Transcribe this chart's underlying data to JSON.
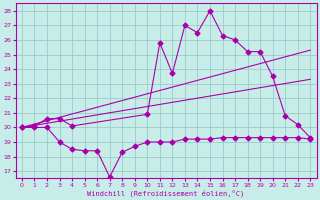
{
  "xlabel": "Windchill (Refroidissement éolien,°C)",
  "bg_color": "#c8ece8",
  "line_color": "#aa00aa",
  "grid_color": "#99cccc",
  "spine_color": "#aa00aa",
  "xlim": [
    -0.5,
    23.5
  ],
  "ylim": [
    16.5,
    28.5
  ],
  "yticks": [
    17,
    18,
    19,
    20,
    21,
    22,
    23,
    24,
    25,
    26,
    27,
    28
  ],
  "xticks": [
    0,
    1,
    2,
    3,
    4,
    5,
    6,
    7,
    8,
    9,
    10,
    11,
    12,
    13,
    14,
    15,
    16,
    17,
    18,
    19,
    20,
    21,
    22,
    23
  ],
  "series": [
    {
      "x": [
        0,
        1,
        2,
        3,
        4,
        5,
        6,
        7,
        8,
        9,
        10,
        11,
        12,
        13,
        14,
        15,
        16,
        17,
        18,
        19,
        20,
        21,
        22,
        23
      ],
      "y": [
        20.0,
        20.0,
        20.0,
        19.0,
        18.5,
        18.4,
        18.4,
        16.6,
        18.3,
        18.7,
        19.0,
        19.0,
        19.0,
        19.2,
        19.2,
        19.2,
        19.3,
        19.3,
        19.3,
        19.3,
        19.3,
        19.3,
        19.3,
        19.2
      ],
      "marker": true
    },
    {
      "x": [
        0,
        1,
        2,
        3,
        4,
        10,
        11,
        12,
        13,
        14,
        15,
        16,
        17,
        18,
        19,
        20,
        21,
        22,
        23
      ],
      "y": [
        20.0,
        20.1,
        20.6,
        20.6,
        20.1,
        20.9,
        25.8,
        23.7,
        27.0,
        26.5,
        28.0,
        26.3,
        26.0,
        25.2,
        25.2,
        23.5,
        20.8,
        20.2,
        19.3
      ],
      "marker": true
    },
    {
      "x": [
        0,
        23
      ],
      "y": [
        20.0,
        25.3
      ],
      "marker": false
    },
    {
      "x": [
        0,
        23
      ],
      "y": [
        20.0,
        23.3
      ],
      "marker": false
    }
  ]
}
